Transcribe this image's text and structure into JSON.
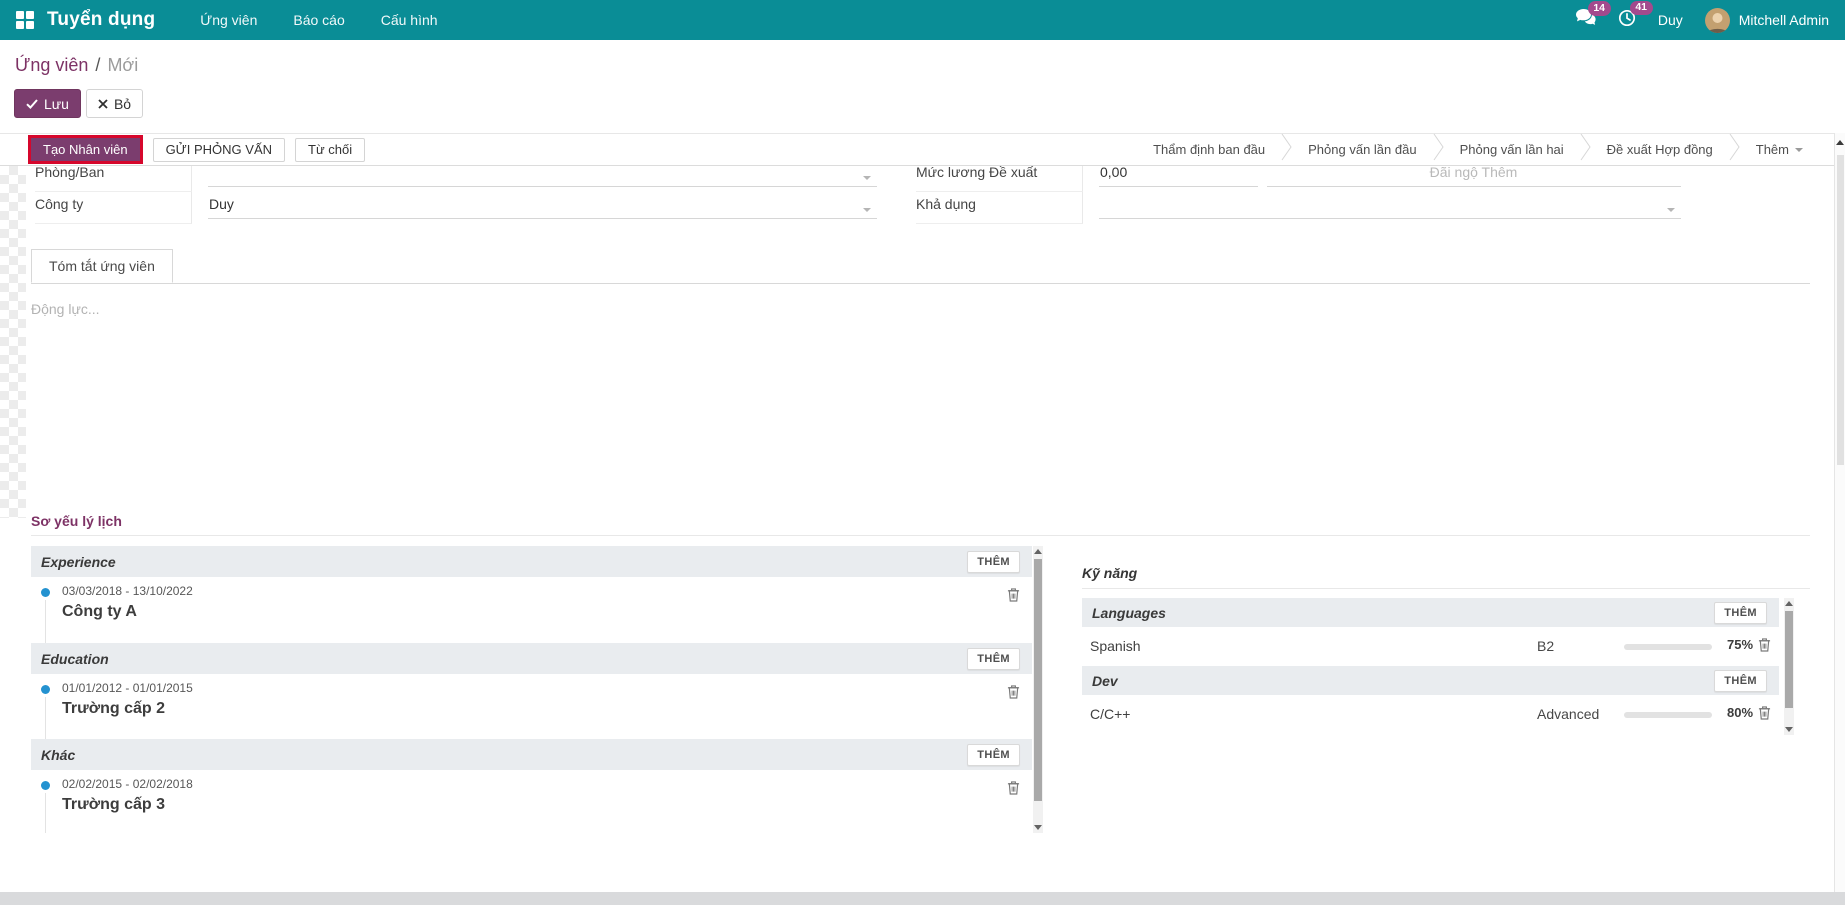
{
  "colors": {
    "navbar_teal": "#0a8d96",
    "primary_purple": "#7b3d6e",
    "badge_pink": "#a34a8d",
    "heading_purple": "#7d3265",
    "annotation_red": "#d6072c",
    "progress_purple": "#6d2a67",
    "timeline_blue": "#2492d0"
  },
  "navbar": {
    "app_name": "Tuyển dụng",
    "menus": [
      "Ứng viên",
      "Báo cáo",
      "Cấu hình"
    ],
    "messages_badge": "14",
    "activities_badge": "41",
    "company": "Duy",
    "user": "Mitchell Admin"
  },
  "breadcrumb": {
    "parent": "Ứng viên",
    "separator": "/",
    "current": "Mới"
  },
  "control_buttons": {
    "save": "Lưu",
    "discard": "Bỏ"
  },
  "statusbar": {
    "actions": [
      "Tạo Nhân viên",
      "GỬI PHỎNG VẤN",
      "Từ chối"
    ],
    "stages": [
      "Thẩm định ban đầu",
      "Phỏng vấn lần đầu",
      "Phỏng vấn lần hai",
      "Đề xuất Hợp đồng"
    ],
    "more_label": "Thêm"
  },
  "form": {
    "left": [
      {
        "label": "Phòng/Ban",
        "value": ""
      },
      {
        "label": "Công ty",
        "value": "Duy"
      }
    ],
    "right": [
      {
        "label": "Mức lương Đề xuất",
        "value": "0,00",
        "placeholder2": "Đãi ngộ Thêm"
      },
      {
        "label": "Khả dụng",
        "value": ""
      }
    ]
  },
  "notebook": {
    "tab": "Tóm tắt ứng viên",
    "placeholder": "Động lực..."
  },
  "resume": {
    "title": "Sơ yếu lý lịch",
    "add_label": "THÊM",
    "sections": [
      {
        "name": "Experience",
        "entries": [
          {
            "dates": "03/03/2018 - 13/10/2022",
            "title": "Công ty A"
          }
        ]
      },
      {
        "name": "Education",
        "entries": [
          {
            "dates": "01/01/2012 - 01/01/2015",
            "title": "Trường cấp 2"
          }
        ]
      },
      {
        "name": "Khác",
        "entries": [
          {
            "dates": "02/02/2015 - 02/02/2018",
            "title": "Trường cấp 3"
          }
        ]
      }
    ]
  },
  "skills": {
    "title": "Kỹ năng",
    "add_label": "THÊM",
    "groups": [
      {
        "name": "Languages",
        "rows": [
          {
            "skill": "Spanish",
            "level": "B2",
            "progress": 75,
            "percent": "75%"
          }
        ]
      },
      {
        "name": "Dev",
        "rows": [
          {
            "skill": "C/C++",
            "level": "Advanced",
            "progress": 80,
            "percent": "80%"
          }
        ]
      }
    ]
  }
}
